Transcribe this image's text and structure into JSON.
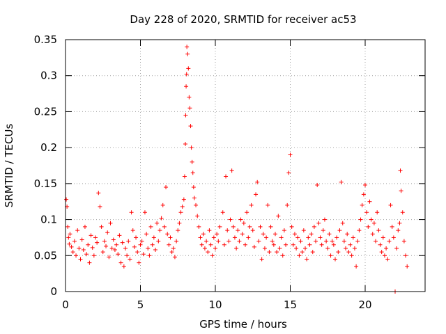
{
  "chart_data": {
    "type": "scatter",
    "title": "Day 228 of 2020, SRMTID for receiver ac53",
    "xlabel": "GPS time / hours",
    "ylabel": "SRMTID / TECUs",
    "xlim": [
      0,
      24
    ],
    "ylim": [
      0,
      0.35
    ],
    "xticks": [
      0,
      5,
      10,
      15,
      20
    ],
    "yticks": [
      0,
      0.05,
      0.1,
      0.15,
      0.2,
      0.25,
      0.3,
      0.35
    ],
    "xtick_labels": [
      "0",
      "5",
      "10",
      "15",
      "20"
    ],
    "ytick_labels": [
      "0",
      "0.05",
      "0.1",
      "0.15",
      "0.2",
      "0.25",
      "0.3",
      "0.35"
    ],
    "grid": true,
    "marker": "+",
    "color": "#ff0000",
    "series": [
      {
        "name": "SRMTID",
        "points": [
          [
            0.05,
            0.128
          ],
          [
            0.1,
            0.118
          ],
          [
            0.15,
            0.09
          ],
          [
            0.2,
            0.075
          ],
          [
            0.25,
            0.066
          ],
          [
            0.3,
            0.08
          ],
          [
            0.4,
            0.062
          ],
          [
            0.5,
            0.055
          ],
          [
            0.6,
            0.07
          ],
          [
            0.7,
            0.05
          ],
          [
            0.8,
            0.085
          ],
          [
            0.9,
            0.06
          ],
          [
            1.0,
            0.045
          ],
          [
            1.1,
            0.072
          ],
          [
            1.2,
            0.058
          ],
          [
            1.3,
            0.09
          ],
          [
            1.4,
            0.052
          ],
          [
            1.5,
            0.065
          ],
          [
            1.6,
            0.04
          ],
          [
            1.7,
            0.078
          ],
          [
            1.8,
            0.061
          ],
          [
            1.9,
            0.05
          ],
          [
            2.0,
            0.075
          ],
          [
            2.1,
            0.068
          ],
          [
            2.2,
            0.137
          ],
          [
            2.3,
            0.118
          ],
          [
            2.4,
            0.09
          ],
          [
            2.5,
            0.055
          ],
          [
            2.6,
            0.07
          ],
          [
            2.7,
            0.063
          ],
          [
            2.8,
            0.082
          ],
          [
            2.9,
            0.048
          ],
          [
            3.0,
            0.095
          ],
          [
            3.1,
            0.06
          ],
          [
            3.2,
            0.072
          ],
          [
            3.3,
            0.058
          ],
          [
            3.4,
            0.065
          ],
          [
            3.5,
            0.052
          ],
          [
            3.6,
            0.078
          ],
          [
            3.7,
            0.04
          ],
          [
            3.8,
            0.068
          ],
          [
            3.9,
            0.035
          ],
          [
            4.0,
            0.06
          ],
          [
            4.1,
            0.05
          ],
          [
            4.2,
            0.07
          ],
          [
            4.3,
            0.045
          ],
          [
            4.4,
            0.11
          ],
          [
            4.5,
            0.085
          ],
          [
            4.6,
            0.062
          ],
          [
            4.7,
            0.075
          ],
          [
            4.8,
            0.055
          ],
          [
            4.9,
            0.04
          ],
          [
            5.0,
            0.065
          ],
          [
            5.1,
            0.07
          ],
          [
            5.2,
            0.052
          ],
          [
            5.3,
            0.11
          ],
          [
            5.4,
            0.08
          ],
          [
            5.5,
            0.06
          ],
          [
            5.6,
            0.05
          ],
          [
            5.7,
            0.09
          ],
          [
            5.8,
            0.065
          ],
          [
            5.9,
            0.075
          ],
          [
            6.0,
            0.058
          ],
          [
            6.1,
            0.095
          ],
          [
            6.2,
            0.07
          ],
          [
            6.3,
            0.085
          ],
          [
            6.4,
            0.102
          ],
          [
            6.5,
            0.12
          ],
          [
            6.6,
            0.09
          ],
          [
            6.7,
            0.145
          ],
          [
            6.8,
            0.08
          ],
          [
            6.9,
            0.065
          ],
          [
            7.0,
            0.075
          ],
          [
            7.1,
            0.055
          ],
          [
            7.2,
            0.06
          ],
          [
            7.3,
            0.048
          ],
          [
            7.4,
            0.07
          ],
          [
            7.5,
            0.085
          ],
          [
            7.6,
            0.095
          ],
          [
            7.7,
            0.11
          ],
          [
            7.8,
            0.118
          ],
          [
            7.9,
            0.128
          ],
          [
            7.95,
            0.16
          ],
          [
            8.0,
            0.205
          ],
          [
            8.02,
            0.245
          ],
          [
            8.05,
            0.285
          ],
          [
            8.08,
            0.302
          ],
          [
            8.1,
            0.34
          ],
          [
            8.15,
            0.33
          ],
          [
            8.2,
            0.31
          ],
          [
            8.25,
            0.27
          ],
          [
            8.3,
            0.255
          ],
          [
            8.35,
            0.23
          ],
          [
            8.4,
            0.2
          ],
          [
            8.45,
            0.18
          ],
          [
            8.5,
            0.165
          ],
          [
            8.55,
            0.145
          ],
          [
            8.6,
            0.13
          ],
          [
            8.7,
            0.12
          ],
          [
            8.8,
            0.105
          ],
          [
            8.9,
            0.09
          ],
          [
            9.0,
            0.075
          ],
          [
            9.1,
            0.065
          ],
          [
            9.2,
            0.08
          ],
          [
            9.3,
            0.06
          ],
          [
            9.4,
            0.07
          ],
          [
            9.5,
            0.055
          ],
          [
            9.6,
            0.085
          ],
          [
            9.7,
            0.065
          ],
          [
            9.8,
            0.05
          ],
          [
            9.9,
            0.075
          ],
          [
            10.0,
            0.06
          ],
          [
            10.1,
            0.08
          ],
          [
            10.2,
            0.07
          ],
          [
            10.3,
            0.09
          ],
          [
            10.5,
            0.11
          ],
          [
            10.6,
            0.065
          ],
          [
            10.7,
            0.16
          ],
          [
            10.8,
            0.085
          ],
          [
            10.9,
            0.07
          ],
          [
            11.0,
            0.1
          ],
          [
            11.1,
            0.168
          ],
          [
            11.2,
            0.09
          ],
          [
            11.3,
            0.075
          ],
          [
            11.4,
            0.06
          ],
          [
            11.5,
            0.085
          ],
          [
            11.6,
            0.07
          ],
          [
            11.7,
            0.1
          ],
          [
            11.8,
            0.08
          ],
          [
            11.9,
            0.095
          ],
          [
            12.0,
            0.065
          ],
          [
            12.1,
            0.11
          ],
          [
            12.2,
            0.075
          ],
          [
            12.3,
            0.09
          ],
          [
            12.4,
            0.12
          ],
          [
            12.5,
            0.085
          ],
          [
            12.6,
            0.062
          ],
          [
            12.7,
            0.135
          ],
          [
            12.8,
            0.152
          ],
          [
            12.9,
            0.07
          ],
          [
            13.0,
            0.09
          ],
          [
            13.1,
            0.045
          ],
          [
            13.2,
            0.08
          ],
          [
            13.3,
            0.06
          ],
          [
            13.4,
            0.075
          ],
          [
            13.5,
            0.12
          ],
          [
            13.6,
            0.055
          ],
          [
            13.7,
            0.09
          ],
          [
            13.8,
            0.07
          ],
          [
            13.9,
            0.065
          ],
          [
            14.0,
            0.08
          ],
          [
            14.1,
            0.055
          ],
          [
            14.2,
            0.105
          ],
          [
            14.3,
            0.06
          ],
          [
            14.4,
            0.075
          ],
          [
            14.5,
            0.05
          ],
          [
            14.6,
            0.085
          ],
          [
            14.7,
            0.065
          ],
          [
            14.8,
            0.12
          ],
          [
            14.9,
            0.165
          ],
          [
            15.0,
            0.19
          ],
          [
            15.1,
            0.09
          ],
          [
            15.2,
            0.065
          ],
          [
            15.3,
            0.08
          ],
          [
            15.4,
            0.06
          ],
          [
            15.5,
            0.075
          ],
          [
            15.6,
            0.05
          ],
          [
            15.7,
            0.07
          ],
          [
            15.8,
            0.055
          ],
          [
            15.9,
            0.085
          ],
          [
            16.0,
            0.06
          ],
          [
            16.1,
            0.045
          ],
          [
            16.2,
            0.075
          ],
          [
            16.3,
            0.065
          ],
          [
            16.4,
            0.08
          ],
          [
            16.5,
            0.055
          ],
          [
            16.6,
            0.09
          ],
          [
            16.7,
            0.07
          ],
          [
            16.8,
            0.148
          ],
          [
            16.9,
            0.095
          ],
          [
            17.0,
            0.075
          ],
          [
            17.1,
            0.065
          ],
          [
            17.2,
            0.085
          ],
          [
            17.3,
            0.1
          ],
          [
            17.4,
            0.07
          ],
          [
            17.5,
            0.06
          ],
          [
            17.6,
            0.08
          ],
          [
            17.7,
            0.05
          ],
          [
            17.8,
            0.07
          ],
          [
            17.9,
            0.065
          ],
          [
            18.0,
            0.045
          ],
          [
            18.1,
            0.075
          ],
          [
            18.2,
            0.055
          ],
          [
            18.3,
            0.085
          ],
          [
            18.4,
            0.152
          ],
          [
            18.5,
            0.095
          ],
          [
            18.6,
            0.07
          ],
          [
            18.7,
            0.06
          ],
          [
            18.8,
            0.08
          ],
          [
            18.9,
            0.055
          ],
          [
            19.0,
            0.065
          ],
          [
            19.1,
            0.05
          ],
          [
            19.2,
            0.075
          ],
          [
            19.3,
            0.06
          ],
          [
            19.4,
            0.035
          ],
          [
            19.5,
            0.07
          ],
          [
            19.6,
            0.085
          ],
          [
            19.7,
            0.1
          ],
          [
            19.8,
            0.12
          ],
          [
            19.9,
            0.135
          ],
          [
            20.0,
            0.148
          ],
          [
            20.1,
            0.11
          ],
          [
            20.2,
            0.09
          ],
          [
            20.3,
            0.125
          ],
          [
            20.4,
            0.1
          ],
          [
            20.5,
            0.08
          ],
          [
            20.6,
            0.095
          ],
          [
            20.7,
            0.07
          ],
          [
            20.8,
            0.11
          ],
          [
            20.9,
            0.085
          ],
          [
            21.0,
            0.065
          ],
          [
            21.1,
            0.055
          ],
          [
            21.2,
            0.075
          ],
          [
            21.3,
            0.05
          ],
          [
            21.4,
            0.06
          ],
          [
            21.5,
            0.045
          ],
          [
            21.6,
            0.07
          ],
          [
            21.7,
            0.12
          ],
          [
            21.8,
            0.09
          ],
          [
            21.9,
            0.075
          ],
          [
            22.0,
            0.0
          ],
          [
            22.1,
            0.06
          ],
          [
            22.2,
            0.085
          ],
          [
            22.3,
            0.095
          ],
          [
            22.35,
            0.168
          ],
          [
            22.4,
            0.14
          ],
          [
            22.5,
            0.11
          ],
          [
            22.6,
            0.07
          ],
          [
            22.7,
            0.05
          ],
          [
            22.8,
            0.035
          ]
        ]
      }
    ]
  }
}
